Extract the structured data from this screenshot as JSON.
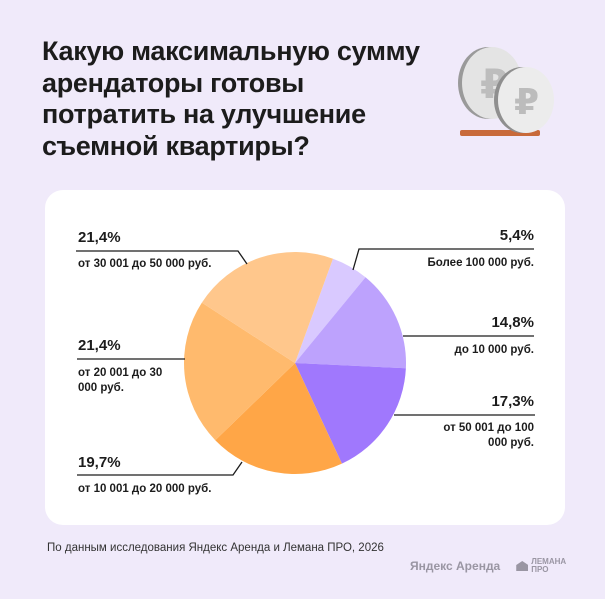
{
  "title": "Какую максимальную сумму арендаторы готовы потратить на улучшение съемной квартиры?",
  "source": "По данным исследования Яндекс Аренда и Лемана ПРО, 2026",
  "logos": {
    "yandex_arenda": "Яндекс Аренда",
    "lemana": "ЛЕМАНА ПРО"
  },
  "chart_data": {
    "type": "pie",
    "start_angle_deg": 20,
    "direction": "clockwise",
    "slices": [
      {
        "label": "Более 100 000 руб.",
        "value": 5.4,
        "value_label": "5,4%",
        "color": "#d9c9ff"
      },
      {
        "label": "до 10 000 руб.",
        "value": 14.8,
        "value_label": "14,8%",
        "color": "#bda2fd"
      },
      {
        "label": "от 50 001 до 100 000 руб.",
        "value": 17.3,
        "value_label": "17,3%",
        "color": "#a078fd"
      },
      {
        "label": "от 10 001 до 20 000 руб.",
        "value": 19.7,
        "value_label": "19,7%",
        "color": "#ffa647"
      },
      {
        "label": "от 20 001 до 30 000 руб.",
        "value": 21.4,
        "value_label": "21,4%",
        "color": "#ffba6d"
      },
      {
        "label": "от 30 001 до 50 000 руб.",
        "value": 21.4,
        "value_label": "21,4%",
        "color": "#ffc78c"
      }
    ]
  }
}
